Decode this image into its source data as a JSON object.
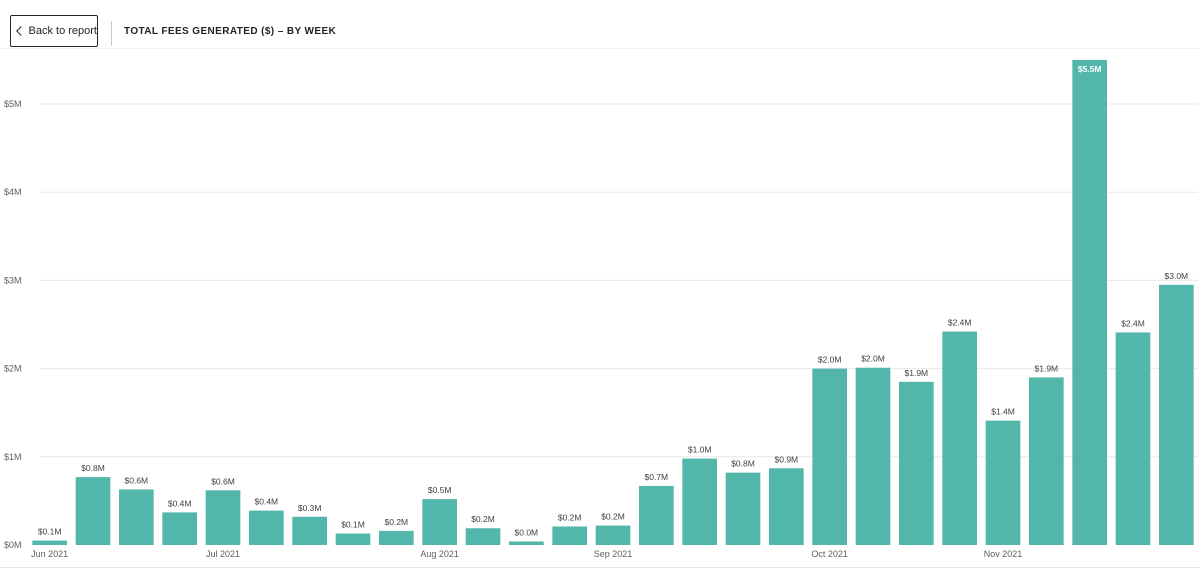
{
  "header": {
    "back_label": "Back to report",
    "title": "TOTAL FEES GENERATED ($) – BY WEEK"
  },
  "colors": {
    "bar": "#52b7aa",
    "bar_label_inside": "#ffffff",
    "label": "#404040",
    "axis_text": "#605e5c",
    "gridline": "#e8e8e8"
  },
  "chart_data": {
    "type": "bar",
    "title": "TOTAL FEES GENERATED ($) – BY WEEK",
    "xlabel": "",
    "ylabel": "",
    "ylim": [
      0,
      5.5
    ],
    "grid": true,
    "y_ticks": [
      {
        "value": 0,
        "label": "$0M"
      },
      {
        "value": 1,
        "label": "$1M"
      },
      {
        "value": 2,
        "label": "$2M"
      },
      {
        "value": 3,
        "label": "$3M"
      },
      {
        "value": 4,
        "label": "$4M"
      },
      {
        "value": 5,
        "label": "$5M"
      }
    ],
    "x_ticks": [
      {
        "index": 0,
        "label": "Jun 2021"
      },
      {
        "index": 4,
        "label": "Jul 2021"
      },
      {
        "index": 9,
        "label": "Aug 2021"
      },
      {
        "index": 13,
        "label": "Sep 2021"
      },
      {
        "index": 18,
        "label": "Oct 2021"
      },
      {
        "index": 22,
        "label": "Nov 2021"
      }
    ],
    "values": [
      0.05,
      0.77,
      0.63,
      0.37,
      0.62,
      0.39,
      0.32,
      0.13,
      0.16,
      0.52,
      0.19,
      0.04,
      0.21,
      0.22,
      0.67,
      0.98,
      0.82,
      0.87,
      2.0,
      2.01,
      1.85,
      2.42,
      1.41,
      1.9,
      5.5,
      2.41,
      2.95
    ],
    "labels": [
      "$0.1M",
      "$0.8M",
      "$0.6M",
      "$0.4M",
      "$0.6M",
      "$0.4M",
      "$0.3M",
      "$0.1M",
      "$0.2M",
      "$0.5M",
      "$0.2M",
      "$0.0M",
      "$0.2M",
      "$0.2M",
      "$0.7M",
      "$1.0M",
      "$0.8M",
      "$0.9M",
      "$2.0M",
      "$2.0M",
      "$1.9M",
      "$2.4M",
      "$1.4M",
      "$1.9M",
      "$5.5M",
      "$2.4M",
      "$3.0M"
    ]
  }
}
